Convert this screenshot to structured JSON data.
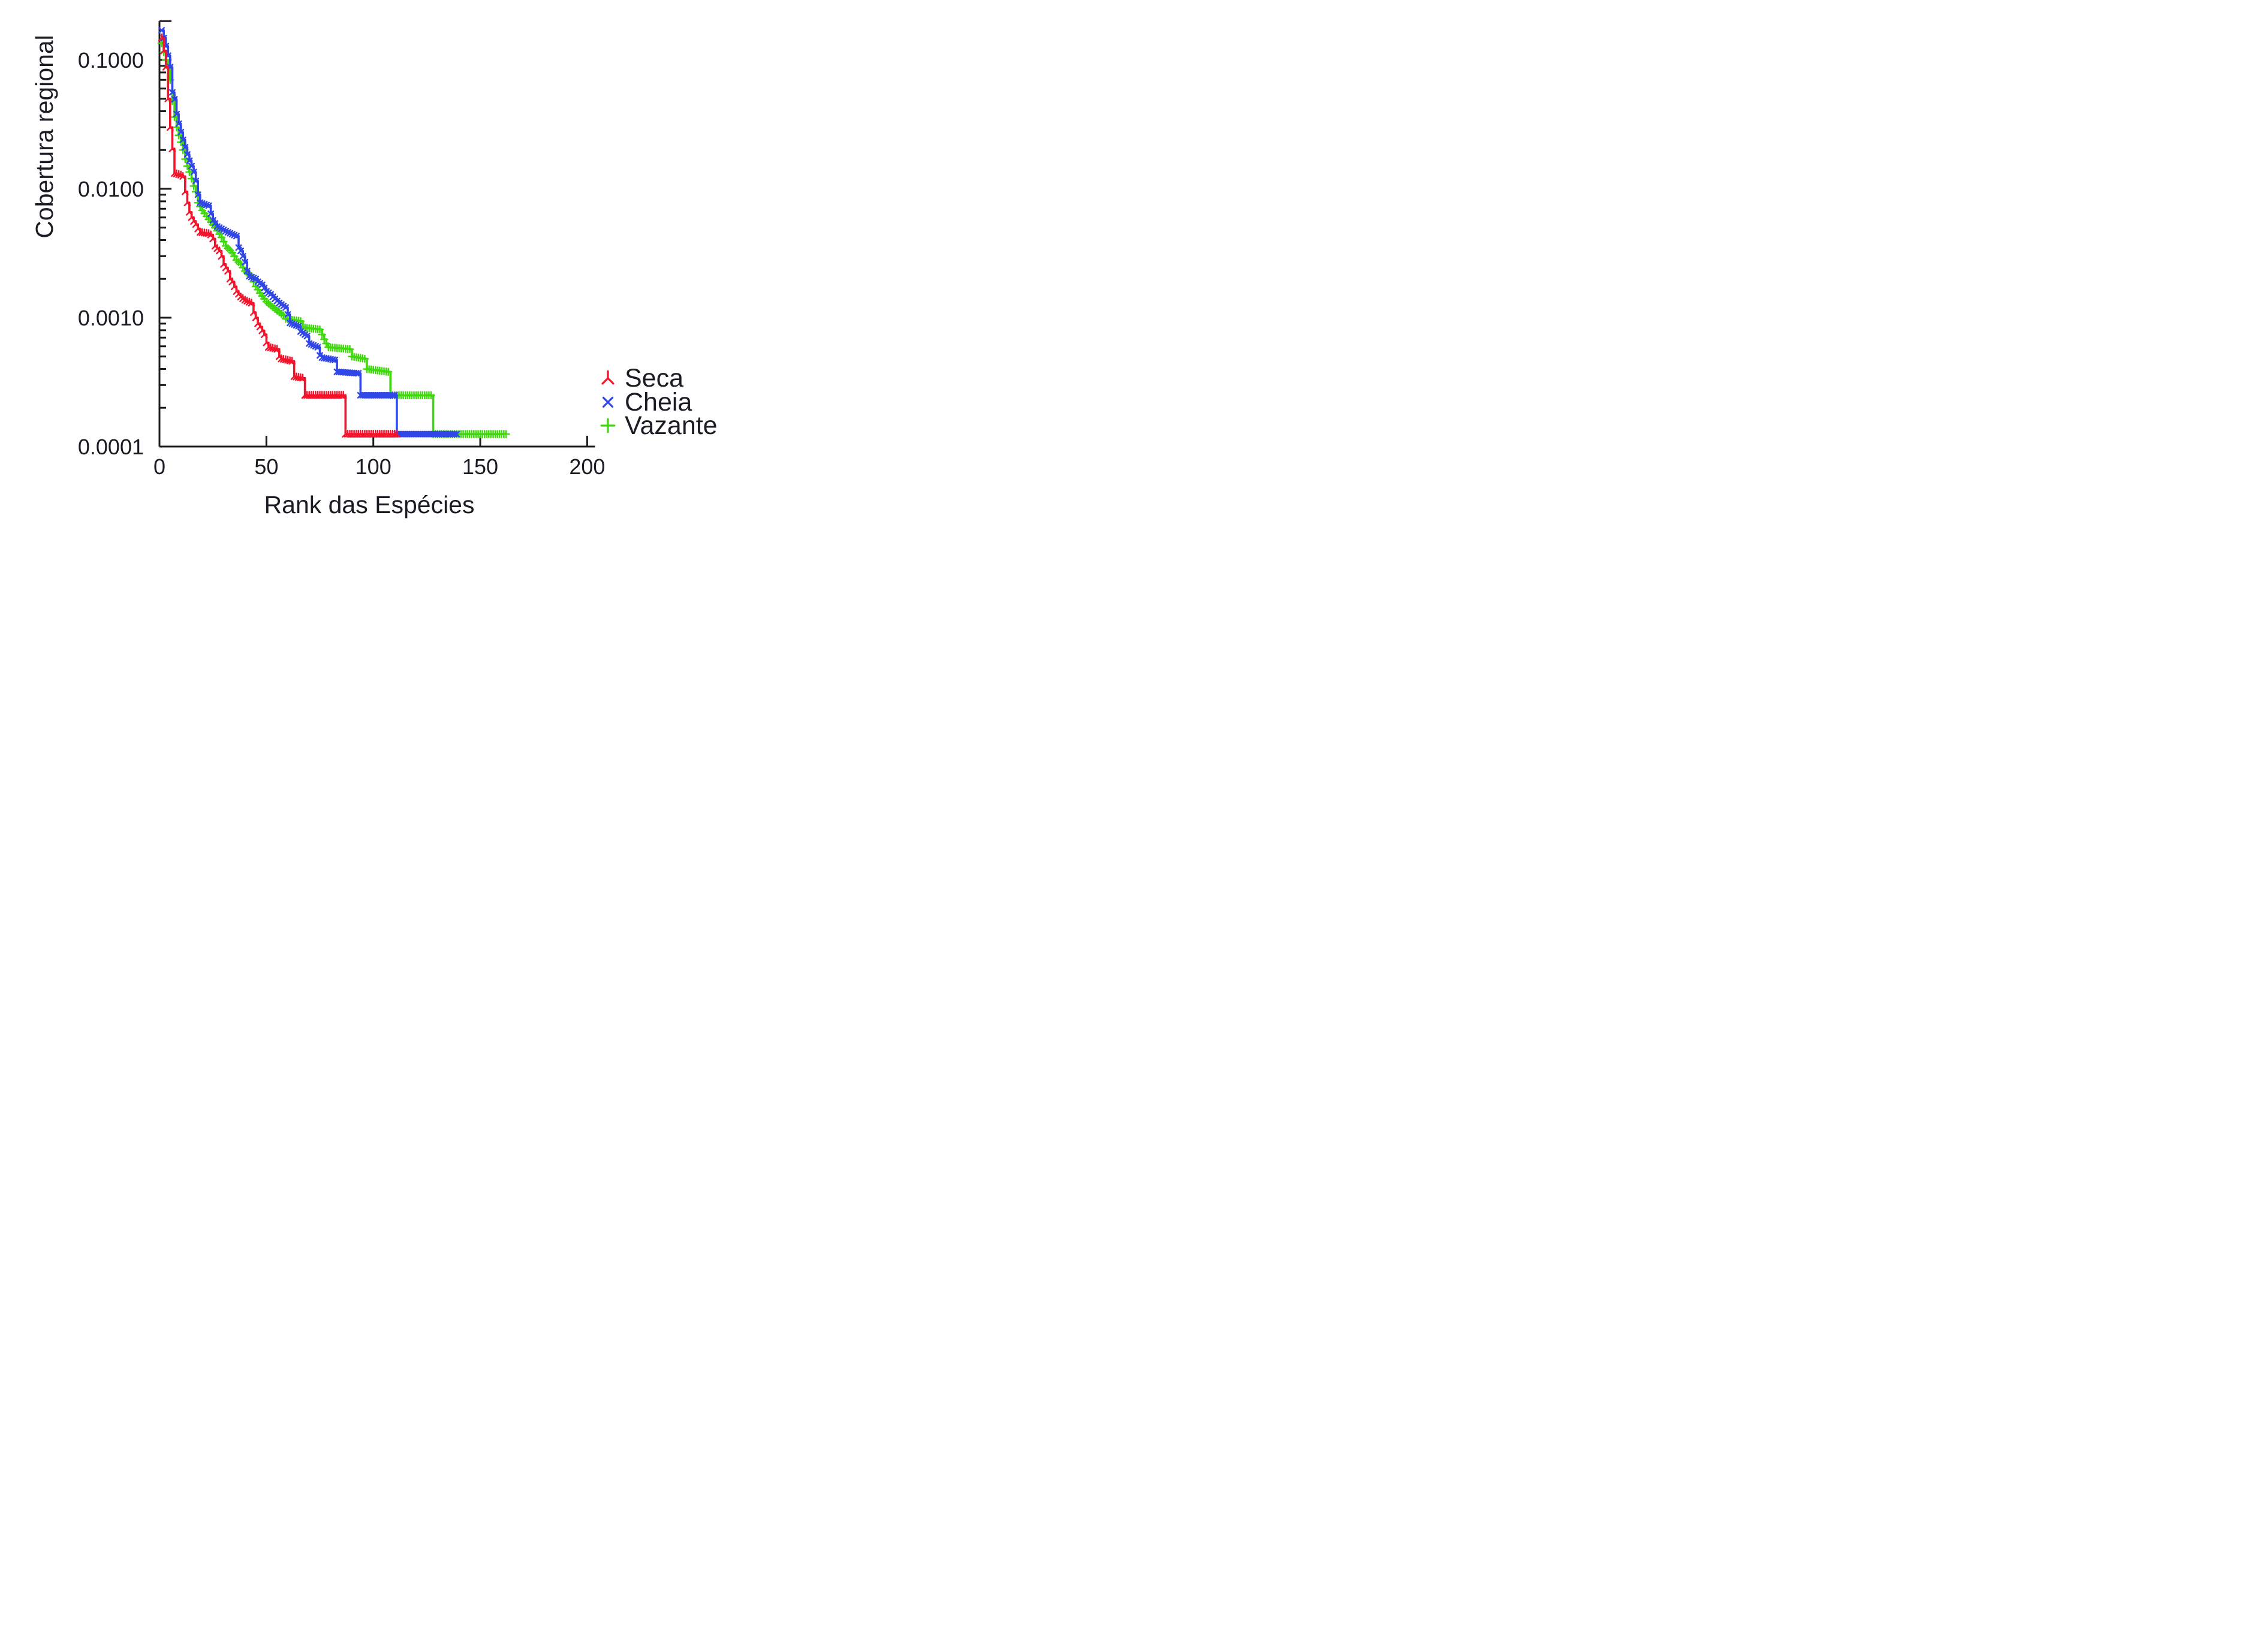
{
  "background": "#ffffff",
  "chart_data": {
    "type": "line",
    "title": "",
    "xlabel": "Rank das Espécies",
    "ylabel": "Cobertura regional",
    "grid": false,
    "line_join": "step-after",
    "x_axis": {
      "min": 0,
      "max": 200,
      "ticks": [
        0,
        50,
        100,
        150,
        200
      ],
      "tick_labels": [
        "0",
        "50",
        "100",
        "150",
        "200"
      ]
    },
    "y_axis": {
      "scale": "log",
      "min": 0.0001,
      "max": 0.2,
      "ticks": [
        0.1,
        0.01,
        0.001,
        0.0001
      ],
      "tick_labels": [
        "0.1000",
        "0.0100",
        "0.0010",
        "0.0001"
      ],
      "minor_ticks_per_decade": [
        2,
        3,
        4,
        5,
        6,
        7,
        8,
        9
      ]
    },
    "legend": {
      "position": "right",
      "entries": [
        {
          "label": "Seca",
          "color": "#f5132c",
          "marker": "tri-down"
        },
        {
          "label": "Cheia",
          "color": "#3146e6",
          "marker": "x"
        },
        {
          "label": "Vazante",
          "color": "#3fd80d",
          "marker": "plus"
        }
      ]
    },
    "series": [
      {
        "name": "Seca",
        "color": "#f5132c",
        "marker": "tri-down",
        "points": [
          [
            1,
            0.148
          ],
          [
            2,
            0.118
          ],
          [
            3,
            0.088
          ],
          [
            4,
            0.05
          ],
          [
            5,
            0.03
          ],
          [
            6,
            0.0205
          ],
          [
            7,
            0.0132
          ],
          [
            10,
            0.0128
          ],
          [
            11,
            0.0125
          ],
          [
            12,
            0.0095
          ],
          [
            13,
            0.0078
          ],
          [
            14,
            0.0066
          ],
          [
            15,
            0.006
          ],
          [
            16,
            0.0056
          ],
          [
            17,
            0.0053
          ],
          [
            18,
            0.0049
          ],
          [
            19,
            0.0046
          ],
          [
            23,
            0.0045
          ],
          [
            24,
            0.0044
          ],
          [
            25,
            0.0041
          ],
          [
            26,
            0.0036
          ],
          [
            28,
            0.0033
          ],
          [
            29,
            0.003
          ],
          [
            30,
            0.0026
          ],
          [
            32,
            0.0023
          ],
          [
            33,
            0.002
          ],
          [
            34,
            0.0019
          ],
          [
            36,
            0.0016
          ],
          [
            38,
            0.00145
          ],
          [
            40,
            0.00137
          ],
          [
            43,
            0.0013
          ],
          [
            44,
            0.0011
          ],
          [
            45,
            0.001
          ],
          [
            46,
            0.0009
          ],
          [
            47,
            0.00085
          ],
          [
            49,
            0.00074
          ],
          [
            50,
            0.00064
          ],
          [
            51,
            0.00059
          ],
          [
            55,
            0.00057
          ],
          [
            56,
            0.0005
          ],
          [
            57,
            0.00048
          ],
          [
            62,
            0.00046
          ],
          [
            63,
            0.00035
          ],
          [
            67,
            0.00034
          ],
          [
            68,
            0.00025
          ],
          [
            86,
            0.00025
          ],
          [
            87,
            0.000125
          ],
          [
            111,
            0.000125
          ]
        ]
      },
      {
        "name": "Cheia",
        "color": "#3146e6",
        "marker": "x",
        "points": [
          [
            1,
            0.17
          ],
          [
            2,
            0.148
          ],
          [
            3,
            0.128
          ],
          [
            4,
            0.108
          ],
          [
            5,
            0.088
          ],
          [
            6,
            0.056
          ],
          [
            7,
            0.0495
          ],
          [
            8,
            0.038
          ],
          [
            9,
            0.032
          ],
          [
            10,
            0.0275
          ],
          [
            11,
            0.024
          ],
          [
            12,
            0.021
          ],
          [
            13,
            0.0185
          ],
          [
            14,
            0.0165
          ],
          [
            15,
            0.015
          ],
          [
            16,
            0.0135
          ],
          [
            17,
            0.0115
          ],
          [
            18,
            0.009
          ],
          [
            19,
            0.0078
          ],
          [
            23,
            0.0074
          ],
          [
            24,
            0.0064
          ],
          [
            25,
            0.0057
          ],
          [
            27,
            0.0051
          ],
          [
            28,
            0.005
          ],
          [
            32,
            0.0046
          ],
          [
            36,
            0.0043
          ],
          [
            37,
            0.0035
          ],
          [
            38,
            0.0033
          ],
          [
            39,
            0.003
          ],
          [
            40,
            0.0027
          ],
          [
            41,
            0.0023
          ],
          [
            42,
            0.0021
          ],
          [
            45,
            0.002
          ],
          [
            46,
            0.0019
          ],
          [
            48,
            0.0018
          ],
          [
            50,
            0.0016
          ],
          [
            52,
            0.00152
          ],
          [
            53,
            0.00145
          ],
          [
            56,
            0.0013
          ],
          [
            59,
            0.0012
          ],
          [
            60,
            0.00106
          ],
          [
            61,
            0.00091
          ],
          [
            65,
            0.00086
          ],
          [
            66,
            0.00078
          ],
          [
            69,
            0.00072
          ],
          [
            70,
            0.00063
          ],
          [
            74,
            0.00059
          ],
          [
            75,
            0.00051
          ],
          [
            76,
            0.00049
          ],
          [
            82,
            0.00047
          ],
          [
            83,
            0.00038
          ],
          [
            93,
            0.00037
          ],
          [
            94,
            0.00025
          ],
          [
            110,
            0.00025
          ],
          [
            111,
            0.000125
          ],
          [
            139,
            0.000125
          ]
        ]
      },
      {
        "name": "Vazante",
        "color": "#3fd80d",
        "marker": "plus",
        "points": [
          [
            1,
            0.135
          ],
          [
            2,
            0.115
          ],
          [
            3,
            0.1
          ],
          [
            4,
            0.088
          ],
          [
            5,
            0.07
          ],
          [
            6,
            0.048
          ],
          [
            7,
            0.036
          ],
          [
            8,
            0.03
          ],
          [
            9,
            0.026
          ],
          [
            10,
            0.023
          ],
          [
            11,
            0.02
          ],
          [
            12,
            0.017
          ],
          [
            13,
            0.015
          ],
          [
            14,
            0.0135
          ],
          [
            15,
            0.012
          ],
          [
            16,
            0.0105
          ],
          [
            17,
            0.0095
          ],
          [
            18,
            0.0078
          ],
          [
            20,
            0.0068
          ],
          [
            23,
            0.0058
          ],
          [
            26,
            0.005
          ],
          [
            29,
            0.0042
          ],
          [
            31,
            0.0036
          ],
          [
            34,
            0.0032
          ],
          [
            36,
            0.0028
          ],
          [
            38,
            0.0026
          ],
          [
            40,
            0.0023
          ],
          [
            43,
            0.0021
          ],
          [
            44,
            0.0019
          ],
          [
            45,
            0.00175
          ],
          [
            47,
            0.00155
          ],
          [
            50,
            0.00133
          ],
          [
            54,
            0.00117
          ],
          [
            58,
            0.00104
          ],
          [
            59,
            0.00098
          ],
          [
            66,
            0.00094
          ],
          [
            67,
            0.00084
          ],
          [
            75,
            0.00081
          ],
          [
            76,
            0.00074
          ],
          [
            77,
            0.00068
          ],
          [
            78,
            0.00063
          ],
          [
            79,
            0.00059
          ],
          [
            89,
            0.00057
          ],
          [
            90,
            0.0005
          ],
          [
            96,
            0.00048
          ],
          [
            97,
            0.0004
          ],
          [
            107,
            0.00038
          ],
          [
            108,
            0.00025
          ],
          [
            127,
            0.00025
          ],
          [
            128,
            0.000125
          ],
          [
            162,
            0.000125
          ]
        ]
      }
    ]
  }
}
